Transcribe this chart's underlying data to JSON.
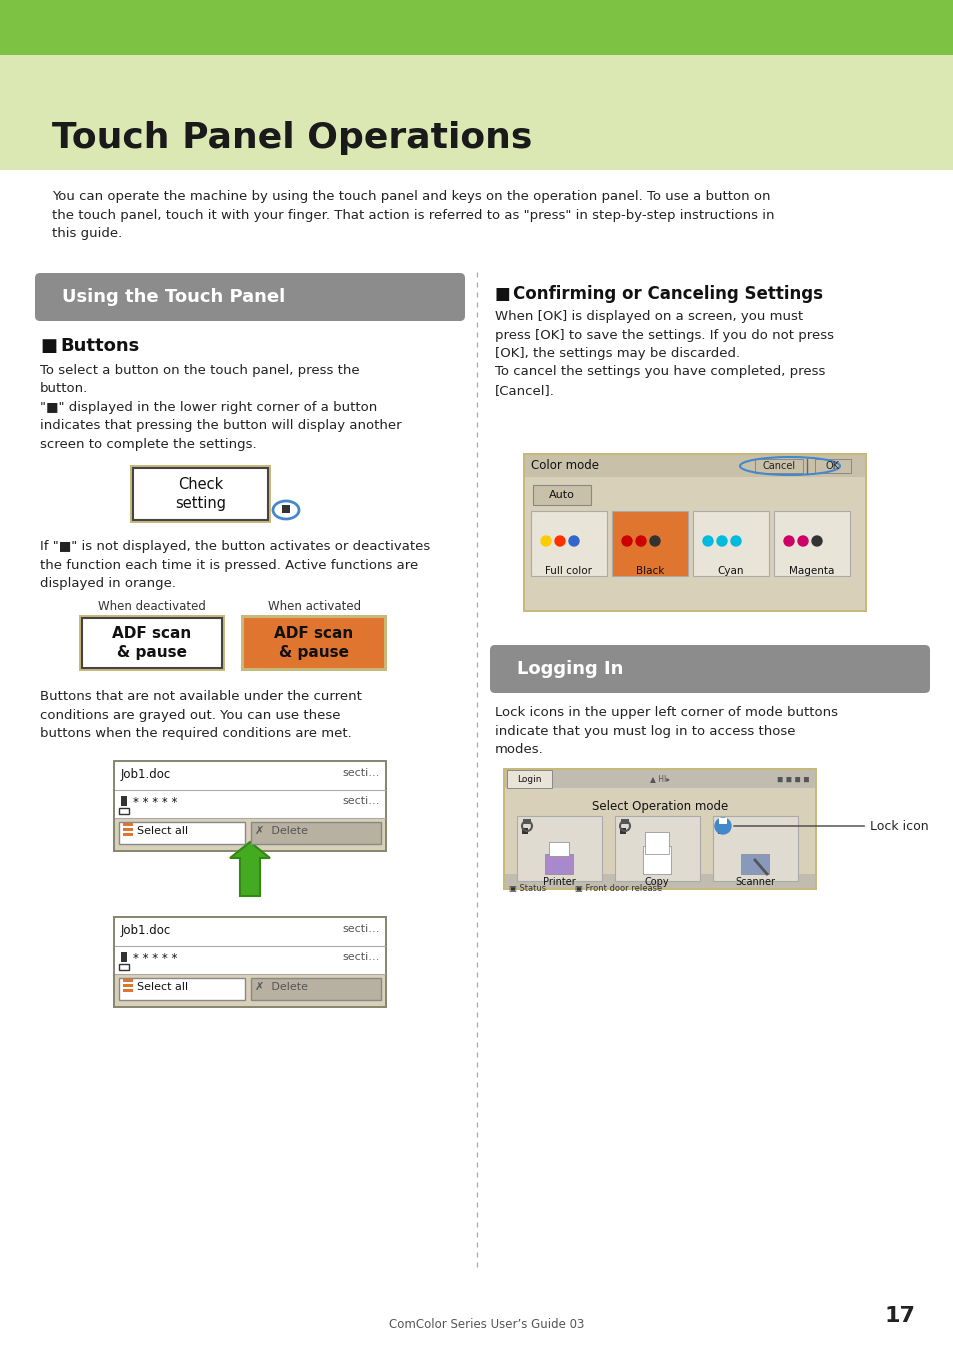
{
  "bg_color": "#ffffff",
  "header_green": "#7dc242",
  "header_light_green": "#dce8b4",
  "title": "Touch Panel Operations",
  "title_fontsize": 24,
  "intro_text": "You can operate the machine by using the touch panel and keys on the operation panel. To use a button on\nthe touch panel, touch it with your finger. That action is referred to as \"press\" in step-by-step instructions in\nthis guide.",
  "section1_title": "Using the Touch Panel",
  "section1_bg": "#8c8c8c",
  "section1_text_color": "#ffffff",
  "section2_title": "Logging In",
  "section2_bg": "#8c8c8c",
  "section2_text_color": "#ffffff",
  "buttons_heading": "Buttons",
  "buttons_text1": "To select a button on the touch panel, press the\nbutton.\n\"■\" displayed in the lower right corner of a button\nindicates that pressing the button will display another\nscreen to complete the settings.",
  "check_button_text": "Check\nsetting",
  "adf_deactivated": "ADF scan\n& pause",
  "adf_activated": "ADF scan\n& pause",
  "adf_text": "If \"■\" is not displayed, the button activates or deactivates\nthe function each time it is pressed. Active functions are\ndisplayed in orange.",
  "when_deactivated": "When deactivated",
  "when_activated": "When activated",
  "grayed_text": "Buttons that are not available under the current\nconditions are grayed out. You can use these\nbuttons when the required conditions are met.",
  "confirming_heading": "Confirming or Canceling Settings",
  "confirming_text": "When [OK] is displayed on a screen, you must\npress [OK] to save the settings. If you do not press\n[OK], the settings may be discarded.\nTo cancel the settings you have completed, press\n[Cancel].",
  "logging_text": "Lock icons in the upper left corner of mode buttons\nindicate that you must log in to access those\nmodes.",
  "lock_icon_label": "Lock icon",
  "footer_text": "ComColor Series User’s Guide 03",
  "page_number": "17",
  "orange_color": "#e07530",
  "gray_button_color": "#b8b0a0",
  "tan_border": "#c8b87a",
  "dialog_bg": "#d8d0b8",
  "dialog_title_bg": "#c8c0a8",
  "dialog_btn_bg": "#c8c0a8",
  "white": "#ffffff",
  "black": "#111111",
  "divider_color": "#aaaaaa"
}
